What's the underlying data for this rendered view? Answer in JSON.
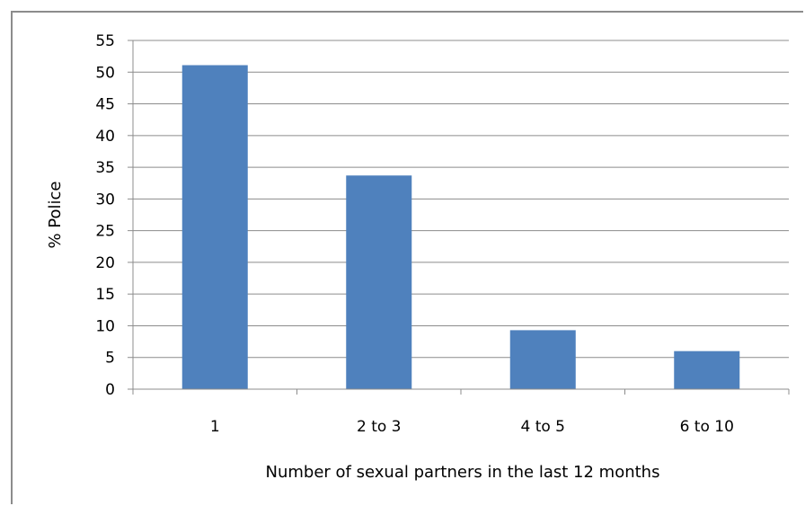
{
  "chart_data": {
    "type": "bar",
    "title": "",
    "xlabel": "Number of sexual partners in the last 12 months",
    "ylabel": "% Police",
    "categories": [
      "1",
      "2 to 3",
      "4 to 5",
      "6 to 10"
    ],
    "values": [
      51.1,
      33.7,
      9.3,
      6.0
    ],
    "ylim": [
      0,
      55
    ],
    "yticks": [
      0,
      5,
      10,
      15,
      20,
      25,
      30,
      35,
      40,
      45,
      50,
      55
    ],
    "grid": true,
    "legend": "none",
    "bar_color": "#4f81bd",
    "grid_color": "#8c8c8c"
  }
}
